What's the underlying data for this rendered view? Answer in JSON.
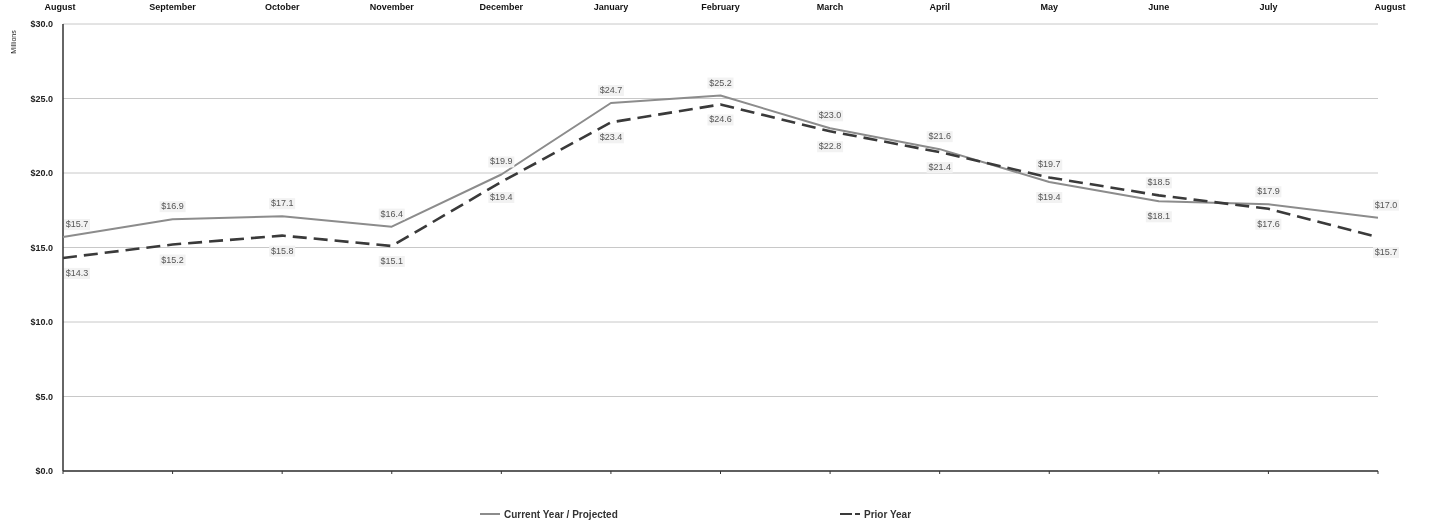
{
  "chart_data": {
    "type": "line",
    "ylabel": "Millions",
    "categories": [
      "August",
      "September",
      "October",
      "November",
      "December",
      "January",
      "February",
      "March",
      "April",
      "May",
      "June",
      "July",
      "August"
    ],
    "series": [
      {
        "name": "Current Year / Projected",
        "color": "#8c8c8c",
        "line_style": "solid",
        "values": [
          15.7,
          16.9,
          17.1,
          16.4,
          19.9,
          24.7,
          25.2,
          23.0,
          21.6,
          19.4,
          18.1,
          17.9,
          17.0
        ],
        "value_labels": [
          "$15.7",
          "$16.9",
          "$17.1",
          "$16.4",
          "$19.9",
          "$24.7",
          "$25.2",
          "$23.0",
          "$21.6",
          "$19.4",
          "$18.1",
          "$17.9",
          "$17.0"
        ]
      },
      {
        "name": "Prior Year",
        "color": "#3a3a3a",
        "line_style": "dashed",
        "values": [
          14.3,
          15.2,
          15.8,
          15.1,
          19.4,
          23.4,
          24.6,
          22.8,
          21.4,
          19.7,
          18.5,
          17.6,
          15.7
        ],
        "value_labels": [
          "$14.3",
          "$15.2",
          "$15.8",
          "$15.1",
          "$19.4",
          "$23.4",
          "$24.6",
          "$22.8",
          "$21.4",
          "$19.7",
          "$18.5",
          "$17.6",
          "$15.7"
        ]
      }
    ],
    "ylim": [
      0,
      30
    ],
    "yticks": [
      {
        "value": 0,
        "label": "$0.0"
      },
      {
        "value": 5,
        "label": "$5.0"
      },
      {
        "value": 10,
        "label": "$10.0"
      },
      {
        "value": 15,
        "label": "$15.0"
      },
      {
        "value": 20,
        "label": "$20.0"
      },
      {
        "value": 25,
        "label": "$25.0"
      },
      {
        "value": 30,
        "label": "$30.0"
      }
    ],
    "grid": "y",
    "legend": "bottom",
    "marker": "none"
  }
}
